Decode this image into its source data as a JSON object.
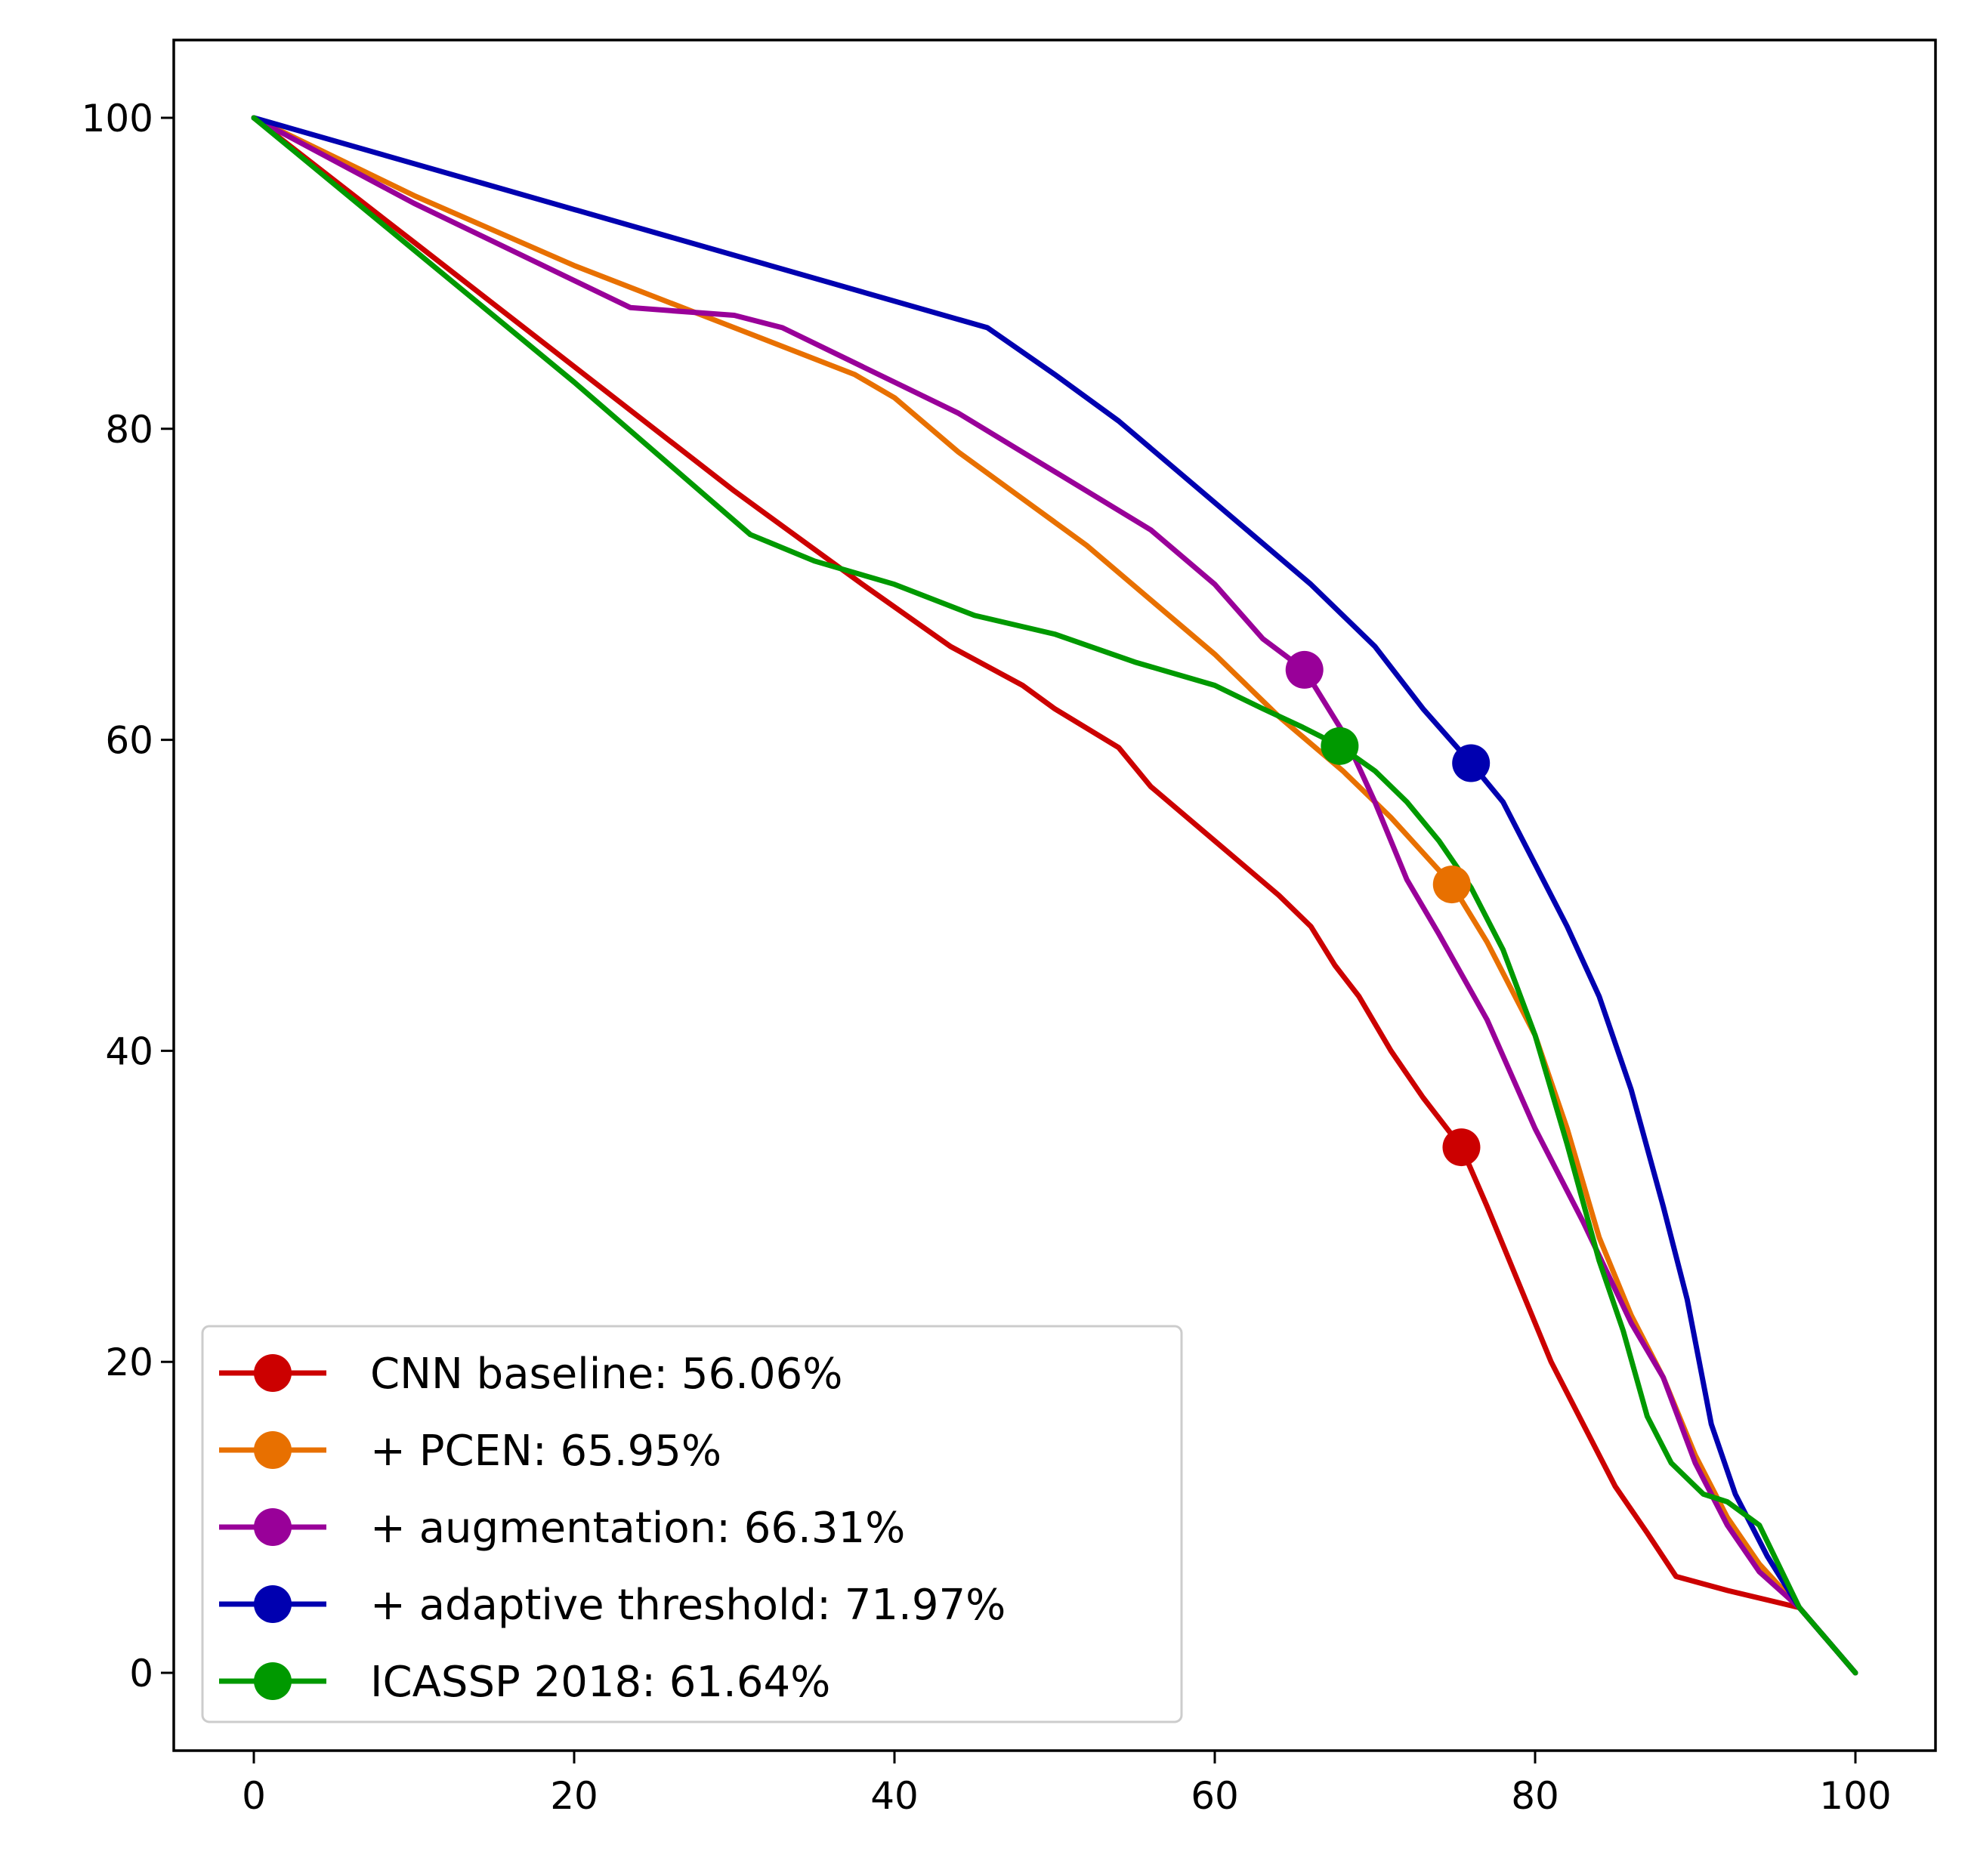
{
  "chart_data": {
    "type": "line",
    "title": "",
    "xlabel": "",
    "ylabel": "",
    "xlim": [
      -5,
      105
    ],
    "ylim": [
      -5,
      105
    ],
    "xticks": [
      0,
      20,
      40,
      60,
      80,
      100
    ],
    "yticks": [
      0,
      20,
      40,
      60,
      80,
      100
    ],
    "grid": false,
    "legend_position": "lower-left",
    "series": [
      {
        "name": "CNN baseline: 56.06%",
        "color": "#cc0000",
        "marker": [
          75.4,
          33.8
        ],
        "points": [
          [
            0,
            100
          ],
          [
            10,
            92
          ],
          [
            20,
            84
          ],
          [
            30,
            76
          ],
          [
            38,
            70
          ],
          [
            43.5,
            66
          ],
          [
            48,
            63.5
          ],
          [
            50,
            62
          ],
          [
            54,
            59.5
          ],
          [
            56,
            57
          ],
          [
            60,
            53.5
          ],
          [
            64,
            50
          ],
          [
            66,
            48
          ],
          [
            67.5,
            45.5
          ],
          [
            69,
            43.5
          ],
          [
            71,
            40
          ],
          [
            73,
            37
          ],
          [
            75.4,
            33.8
          ],
          [
            77,
            30
          ],
          [
            79,
            25
          ],
          [
            81,
            20
          ],
          [
            83,
            16
          ],
          [
            85,
            12
          ],
          [
            87,
            9
          ],
          [
            88.8,
            6.2
          ],
          [
            92,
            5.3
          ],
          [
            96.5,
            4.2
          ],
          [
            100,
            0
          ]
        ]
      },
      {
        "name": "+ PCEN: 65.95%",
        "color": "#e87000",
        "marker": [
          74.8,
          50.7
        ],
        "points": [
          [
            0,
            100
          ],
          [
            10,
            95
          ],
          [
            20,
            90.5
          ],
          [
            30,
            86.5
          ],
          [
            37.5,
            83.5
          ],
          [
            40,
            82
          ],
          [
            44,
            78.5
          ],
          [
            48,
            75.5
          ],
          [
            52,
            72.5
          ],
          [
            56,
            69
          ],
          [
            60,
            65.5
          ],
          [
            64,
            61.5
          ],
          [
            68,
            58
          ],
          [
            71,
            55
          ],
          [
            74.8,
            50.7
          ],
          [
            77,
            47
          ],
          [
            80,
            41
          ],
          [
            82,
            35
          ],
          [
            84,
            28
          ],
          [
            86,
            23
          ],
          [
            88,
            19
          ],
          [
            90,
            14
          ],
          [
            92,
            10
          ],
          [
            94,
            7
          ],
          [
            96.5,
            4.2
          ],
          [
            100,
            0
          ]
        ]
      },
      {
        "name": "+ augmentation: 66.31%",
        "color": "#990099",
        "marker": [
          65.6,
          64.5
        ],
        "points": [
          [
            0,
            100
          ],
          [
            10,
            94.5
          ],
          [
            23.5,
            87.8
          ],
          [
            26,
            87.6
          ],
          [
            30,
            87.3
          ],
          [
            33,
            86.5
          ],
          [
            36,
            85
          ],
          [
            40,
            83
          ],
          [
            44,
            81
          ],
          [
            48,
            78.5
          ],
          [
            52,
            76
          ],
          [
            56,
            73.5
          ],
          [
            60,
            70
          ],
          [
            63,
            66.5
          ],
          [
            65.6,
            64.5
          ],
          [
            68,
            60.5
          ],
          [
            70,
            56
          ],
          [
            72,
            51
          ],
          [
            74,
            47.5
          ],
          [
            77,
            42
          ],
          [
            80,
            35
          ],
          [
            83,
            29
          ],
          [
            86,
            22.5
          ],
          [
            88,
            19
          ],
          [
            90,
            13.5
          ],
          [
            92,
            9.5
          ],
          [
            94,
            6.5
          ],
          [
            96.5,
            4.2
          ],
          [
            100,
            0
          ]
        ]
      },
      {
        "name": "+ adaptive threshold: 71.97%",
        "color": "#0000b0",
        "marker": [
          76.0,
          58.5
        ],
        "points": [
          [
            0,
            100
          ],
          [
            45.8,
            86.5
          ],
          [
            50,
            83.5
          ],
          [
            54,
            80.5
          ],
          [
            58,
            77
          ],
          [
            62,
            73.5
          ],
          [
            66,
            70
          ],
          [
            70,
            66
          ],
          [
            73,
            62
          ],
          [
            76,
            58.5
          ],
          [
            78,
            56
          ],
          [
            80,
            52
          ],
          [
            82,
            48
          ],
          [
            84,
            43.5
          ],
          [
            86,
            37.5
          ],
          [
            88,
            30
          ],
          [
            89.5,
            24
          ],
          [
            91,
            16
          ],
          [
            92.5,
            11.5
          ],
          [
            94.5,
            7.5
          ],
          [
            96.5,
            4.2
          ],
          [
            100,
            0
          ]
        ]
      },
      {
        "name": "ICASSP 2018: 61.64%",
        "color": "#009900",
        "marker": [
          67.8,
          59.6
        ],
        "points": [
          [
            0,
            100
          ],
          [
            10,
            91.5
          ],
          [
            20,
            83
          ],
          [
            31,
            73.2
          ],
          [
            35,
            71.5
          ],
          [
            40,
            70
          ],
          [
            45,
            68
          ],
          [
            50,
            66.8
          ],
          [
            55,
            65
          ],
          [
            60,
            63.5
          ],
          [
            63,
            62
          ],
          [
            65.5,
            60.8
          ],
          [
            67.8,
            59.6
          ],
          [
            70,
            58
          ],
          [
            72,
            56
          ],
          [
            74,
            53.5
          ],
          [
            76,
            50.5
          ],
          [
            78,
            46.5
          ],
          [
            80,
            41
          ],
          [
            82,
            34
          ],
          [
            84,
            26.5
          ],
          [
            85.5,
            22
          ],
          [
            87,
            16.5
          ],
          [
            88.5,
            13.5
          ],
          [
            90.5,
            11.5
          ],
          [
            92,
            11
          ],
          [
            94,
            9.5
          ],
          [
            96.5,
            4.2
          ],
          [
            100,
            0
          ]
        ]
      }
    ]
  }
}
